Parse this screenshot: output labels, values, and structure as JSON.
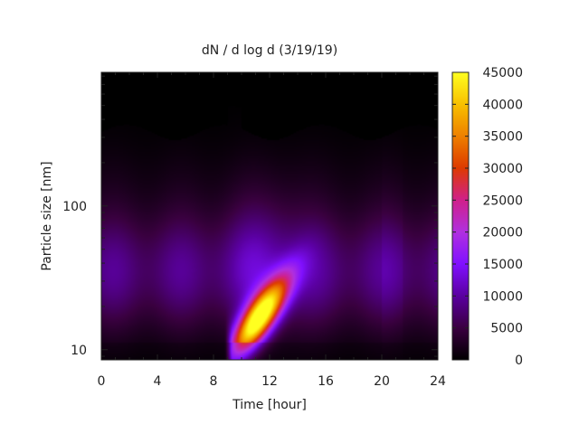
{
  "chart_data": {
    "type": "heatmap",
    "title": "dN / d log d (3/19/19)",
    "xlabel": "Time [hour]",
    "ylabel": "Particle size [nm]",
    "x_ticks": [
      0,
      4,
      8,
      12,
      16,
      20,
      24
    ],
    "x_range": [
      0,
      24
    ],
    "y_scale": "log",
    "y_range": [
      8.5,
      850
    ],
    "y_ticks": [
      10,
      100
    ],
    "colorbar": {
      "min": 0,
      "max": 45000,
      "ticks": [
        0,
        5000,
        10000,
        15000,
        20000,
        25000,
        30000,
        35000,
        40000,
        45000
      ],
      "palette": [
        "#000000",
        "#3a0040",
        "#5a00a0",
        "#8010ff",
        "#b030e0",
        "#d0208a",
        "#dd3a00",
        "#ee8000",
        "#f8c000",
        "#ffff20"
      ]
    },
    "grid": false,
    "features": [
      {
        "name": "nucleation-burst",
        "time_hours": [
          9,
          14
        ],
        "size_nm": [
          9,
          30
        ],
        "peak_value": 45000
      }
    ]
  }
}
